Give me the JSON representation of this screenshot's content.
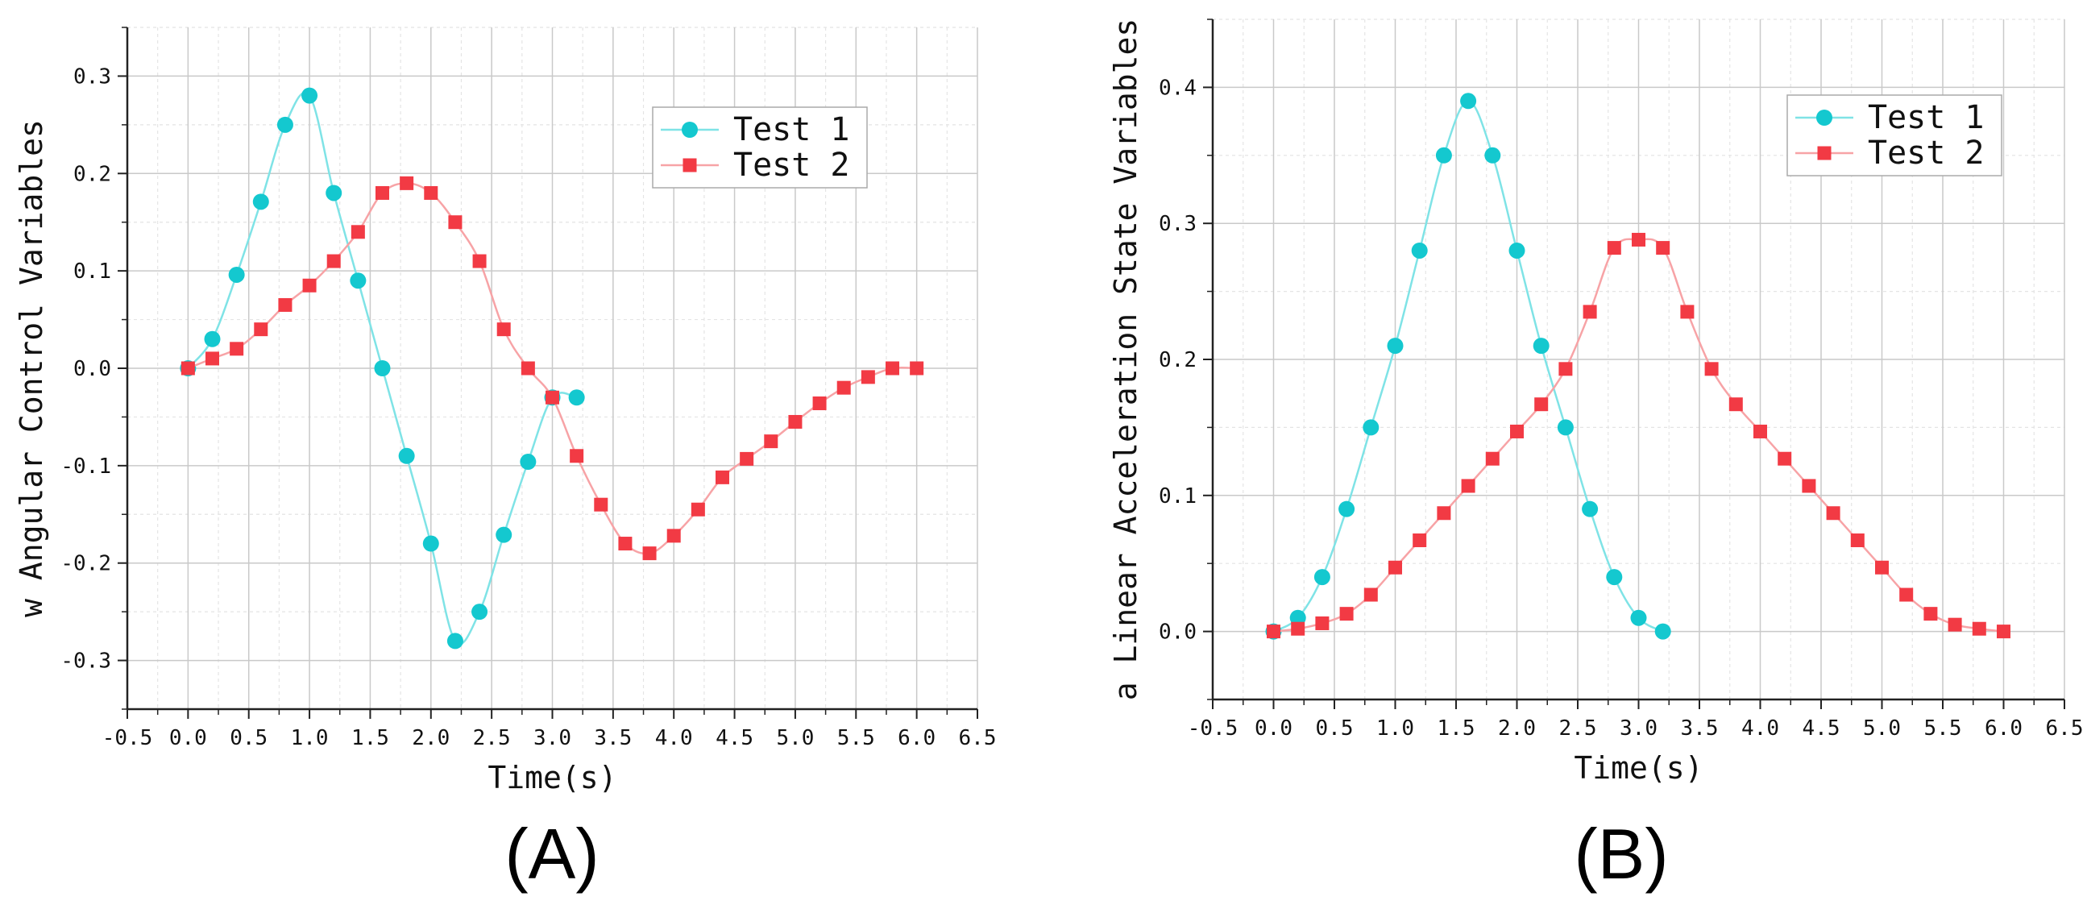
{
  "chart_data": [
    {
      "type": "line",
      "panel_label": "(A)",
      "title": "",
      "xlabel": "Time(s)",
      "ylabel": "w Angular Control Variables",
      "xlim": [
        -0.5,
        6.5
      ],
      "ylim": [
        -0.35,
        0.35
      ],
      "xticks": [
        -0.5,
        0.0,
        0.5,
        1.0,
        1.5,
        2.0,
        2.5,
        3.0,
        3.5,
        4.0,
        4.5,
        5.0,
        5.5,
        6.0,
        6.5
      ],
      "xtick_labels": [
        "-0.5",
        "0.0",
        "0.5",
        "1.0",
        "1.5",
        "2.0",
        "2.5",
        "3.0",
        "3.5",
        "4.0",
        "4.5",
        "5.0",
        "5.5",
        "6.0",
        "6.5"
      ],
      "yticks": [
        -0.3,
        -0.2,
        -0.1,
        0.0,
        0.1,
        0.2,
        0.3
      ],
      "ytick_labels": [
        "-0.3",
        "-0.2",
        "-0.1",
        "0.0",
        "0.1",
        "0.2",
        "0.3"
      ],
      "grid": true,
      "legend_position": "top-right",
      "series": [
        {
          "name": "Test 1",
          "marker": "circle",
          "line_color": "#7fe3e6",
          "marker_color": "#14c8cf",
          "x": [
            0.0,
            0.2,
            0.4,
            0.6,
            0.8,
            1.0,
            1.2,
            1.4,
            1.6,
            1.8,
            2.0,
            2.2,
            2.4,
            2.6,
            2.8,
            3.0,
            3.2
          ],
          "y": [
            0.0,
            0.03,
            0.096,
            0.171,
            0.25,
            0.28,
            0.18,
            0.09,
            0.0,
            -0.09,
            -0.18,
            -0.28,
            -0.25,
            -0.171,
            -0.096,
            -0.03,
            -0.03
          ]
        },
        {
          "name": "Test 2",
          "marker": "square",
          "line_color": "#f7a3a6",
          "marker_color": "#f23a44",
          "x": [
            0.0,
            0.2,
            0.4,
            0.6,
            0.8,
            1.0,
            1.2,
            1.4,
            1.6,
            1.8,
            2.0,
            2.2,
            2.4,
            2.6,
            2.8,
            3.0,
            3.2,
            3.4,
            3.6,
            3.8,
            4.0,
            4.2,
            4.4,
            4.6,
            4.8,
            5.0,
            5.2,
            5.4,
            5.6,
            5.8,
            6.0
          ],
          "y": [
            0.0,
            0.01,
            0.02,
            0.04,
            0.065,
            0.085,
            0.11,
            0.14,
            0.18,
            0.19,
            0.18,
            0.15,
            0.11,
            0.04,
            0.0,
            -0.03,
            -0.09,
            -0.14,
            -0.18,
            -0.19,
            -0.172,
            -0.145,
            -0.112,
            -0.093,
            -0.075,
            -0.055,
            -0.036,
            -0.02,
            -0.009,
            0.0,
            0.0
          ]
        }
      ]
    },
    {
      "type": "line",
      "panel_label": "(B)",
      "title": "",
      "xlabel": "Time(s)",
      "ylabel": "a Linear Acceleration State Variables",
      "xlim": [
        -0.5,
        6.5
      ],
      "ylim": [
        -0.05,
        0.45
      ],
      "xticks": [
        -0.5,
        0.0,
        0.5,
        1.0,
        1.5,
        2.0,
        2.5,
        3.0,
        3.5,
        4.0,
        4.5,
        5.0,
        5.5,
        6.0,
        6.5
      ],
      "xtick_labels": [
        "-0.5",
        "0.0",
        "0.5",
        "1.0",
        "1.5",
        "2.0",
        "2.5",
        "3.0",
        "3.5",
        "4.0",
        "4.5",
        "5.0",
        "5.5",
        "6.0",
        "6.5"
      ],
      "yticks": [
        0.0,
        0.1,
        0.2,
        0.3,
        0.4
      ],
      "ytick_labels": [
        "0.0",
        "0.1",
        "0.2",
        "0.3",
        "0.4"
      ],
      "grid": true,
      "legend_position": "top-right",
      "series": [
        {
          "name": "Test 1",
          "marker": "circle",
          "line_color": "#7fe3e6",
          "marker_color": "#14c8cf",
          "x": [
            0.0,
            0.2,
            0.4,
            0.6,
            0.8,
            1.0,
            1.2,
            1.4,
            1.6,
            1.8,
            2.0,
            2.2,
            2.4,
            2.6,
            2.8,
            3.0,
            3.2
          ],
          "y": [
            0.0,
            0.01,
            0.04,
            0.09,
            0.15,
            0.21,
            0.28,
            0.35,
            0.39,
            0.35,
            0.28,
            0.21,
            0.15,
            0.09,
            0.04,
            0.01,
            0.0
          ]
        },
        {
          "name": "Test 2",
          "marker": "square",
          "line_color": "#f7a3a6",
          "marker_color": "#f23a44",
          "x": [
            0.0,
            0.2,
            0.4,
            0.6,
            0.8,
            1.0,
            1.2,
            1.4,
            1.6,
            1.8,
            2.0,
            2.2,
            2.4,
            2.6,
            2.8,
            3.0,
            3.2,
            3.4,
            3.6,
            3.8,
            4.0,
            4.2,
            4.4,
            4.6,
            4.8,
            5.0,
            5.2,
            5.4,
            5.6,
            5.8,
            6.0
          ],
          "y": [
            0.0,
            0.002,
            0.006,
            0.013,
            0.027,
            0.047,
            0.067,
            0.087,
            0.107,
            0.127,
            0.147,
            0.167,
            0.193,
            0.235,
            0.282,
            0.288,
            0.282,
            0.235,
            0.193,
            0.167,
            0.147,
            0.127,
            0.107,
            0.087,
            0.067,
            0.047,
            0.027,
            0.013,
            0.005,
            0.002,
            0.0
          ]
        }
      ]
    }
  ]
}
